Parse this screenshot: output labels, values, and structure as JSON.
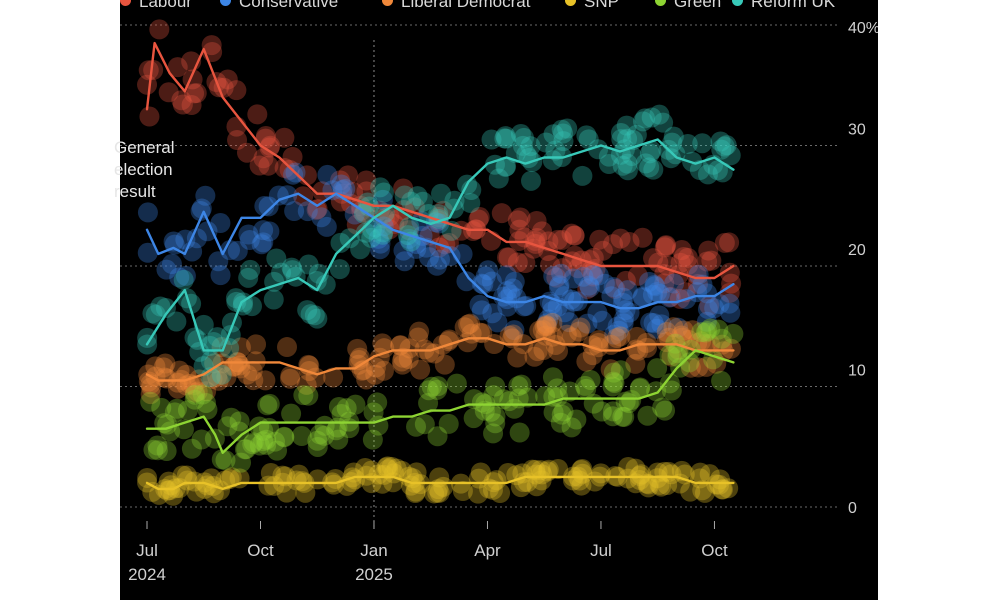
{
  "chart_data": {
    "type": "scatter",
    "subtype": "poll-of-polls (scatter of individual polls with smoothed trend lines)",
    "title": "",
    "xlabel": "",
    "ylabel": "",
    "ylim": [
      0,
      40
    ],
    "y_ticks": [
      "0",
      "10",
      "20",
      "30",
      "40%"
    ],
    "x_ticks": [
      {
        "label": "Jul",
        "year": "2024",
        "date": "2024-07"
      },
      {
        "label": "Oct",
        "year": "",
        "date": "2024-10"
      },
      {
        "label": "Jan",
        "year": "2025",
        "date": "2025-01"
      },
      {
        "label": "Apr",
        "year": "",
        "date": "2025-04"
      },
      {
        "label": "Jul",
        "year": "",
        "date": "2025-07"
      },
      {
        "label": "Oct",
        "year": "",
        "date": "2025-10"
      }
    ],
    "grid": "horizontal dotted",
    "legend_position": "top",
    "annotation": {
      "text": "General\nelection\nresult",
      "date": "2025-01"
    },
    "x_range": [
      "2024-07",
      "2025-12"
    ],
    "series": [
      {
        "name": "Labour",
        "color": "#e8553f",
        "trend": [
          [
            0,
            33
          ],
          [
            0.2,
            38.5
          ],
          [
            0.6,
            36
          ],
          [
            1.0,
            34.5
          ],
          [
            1.5,
            38
          ],
          [
            2.0,
            34
          ],
          [
            2.5,
            32
          ],
          [
            3.0,
            30
          ],
          [
            3.5,
            29
          ],
          [
            4.0,
            27.5
          ],
          [
            4.5,
            26
          ],
          [
            5.0,
            26
          ],
          [
            5.5,
            25.5
          ],
          [
            6.0,
            25
          ],
          [
            6.5,
            25
          ],
          [
            7.0,
            24.5
          ],
          [
            7.5,
            24
          ],
          [
            8.0,
            23.5
          ],
          [
            8.5,
            23
          ],
          [
            9.0,
            23
          ],
          [
            9.5,
            22
          ],
          [
            10.0,
            22
          ],
          [
            10.5,
            21.5
          ],
          [
            11.0,
            21
          ],
          [
            11.5,
            20.5
          ],
          [
            12.0,
            20
          ],
          [
            12.5,
            20
          ],
          [
            13.0,
            20
          ],
          [
            13.5,
            20
          ],
          [
            14.0,
            19.5
          ],
          [
            14.5,
            19
          ],
          [
            15.0,
            19
          ],
          [
            15.5,
            20
          ]
        ]
      },
      {
        "name": "Conservative",
        "color": "#3d86e6",
        "trend": [
          [
            0,
            23
          ],
          [
            0.3,
            21
          ],
          [
            0.7,
            21.5
          ],
          [
            1.0,
            21
          ],
          [
            1.5,
            24.5
          ],
          [
            2.0,
            21
          ],
          [
            2.5,
            24
          ],
          [
            3.0,
            24
          ],
          [
            3.5,
            25.5
          ],
          [
            4.0,
            26
          ],
          [
            4.5,
            25
          ],
          [
            5.0,
            26
          ],
          [
            5.5,
            25
          ],
          [
            6.0,
            24
          ],
          [
            6.5,
            23
          ],
          [
            7.0,
            22.5
          ],
          [
            7.5,
            22
          ],
          [
            8.0,
            21.5
          ],
          [
            8.5,
            19
          ],
          [
            9.0,
            17.5
          ],
          [
            9.5,
            17
          ],
          [
            10.0,
            17
          ],
          [
            10.5,
            17.5
          ],
          [
            11.0,
            17
          ],
          [
            11.5,
            17
          ],
          [
            12.0,
            17
          ],
          [
            12.5,
            16.5
          ],
          [
            13.0,
            16.5
          ],
          [
            13.5,
            17
          ],
          [
            14.0,
            17
          ],
          [
            14.5,
            17.5
          ],
          [
            15.0,
            17.5
          ],
          [
            15.5,
            18.5
          ]
        ]
      },
      {
        "name": "Liberal Democrat",
        "color": "#f0883a",
        "trend": [
          [
            0,
            11
          ],
          [
            0.3,
            10.5
          ],
          [
            1.0,
            10.5
          ],
          [
            1.5,
            11
          ],
          [
            2.0,
            12
          ],
          [
            2.5,
            12
          ],
          [
            3.0,
            12
          ],
          [
            3.5,
            12
          ],
          [
            4.0,
            11.5
          ],
          [
            4.5,
            11
          ],
          [
            5.0,
            11.5
          ],
          [
            5.5,
            11.5
          ],
          [
            6.0,
            12.5
          ],
          [
            6.5,
            13
          ],
          [
            7.0,
            13
          ],
          [
            7.5,
            13
          ],
          [
            8.0,
            13.5
          ],
          [
            8.5,
            14
          ],
          [
            9.0,
            14
          ],
          [
            9.5,
            13.5
          ],
          [
            10.0,
            13.5
          ],
          [
            10.5,
            14
          ],
          [
            11.0,
            13.5
          ],
          [
            11.5,
            13.5
          ],
          [
            12.0,
            13
          ],
          [
            12.5,
            13
          ],
          [
            13.0,
            13.5
          ],
          [
            13.5,
            13.5
          ],
          [
            14.0,
            13.5
          ],
          [
            14.5,
            13
          ],
          [
            15.0,
            13
          ],
          [
            15.5,
            13
          ]
        ]
      },
      {
        "name": "SNP",
        "color": "#e8c228",
        "trend": [
          [
            0,
            2
          ],
          [
            0.3,
            1.5
          ],
          [
            0.7,
            1.5
          ],
          [
            1.0,
            2
          ],
          [
            1.5,
            2
          ],
          [
            2.0,
            1.5
          ],
          [
            2.5,
            2
          ],
          [
            3.0,
            2
          ],
          [
            3.5,
            2
          ],
          [
            4.0,
            2
          ],
          [
            4.5,
            2
          ],
          [
            5.0,
            2
          ],
          [
            5.5,
            2.5
          ],
          [
            6.0,
            2.5
          ],
          [
            6.5,
            2.5
          ],
          [
            7.0,
            2
          ],
          [
            7.5,
            2
          ],
          [
            8.0,
            2
          ],
          [
            8.5,
            2
          ],
          [
            9.0,
            2
          ],
          [
            9.5,
            2
          ],
          [
            10.0,
            2.5
          ],
          [
            10.5,
            2.5
          ],
          [
            11.0,
            2.5
          ],
          [
            11.5,
            2.5
          ],
          [
            12.0,
            2.5
          ],
          [
            12.5,
            2.5
          ],
          [
            13.0,
            2.5
          ],
          [
            13.5,
            2.5
          ],
          [
            14.0,
            2.5
          ],
          [
            14.5,
            2
          ],
          [
            15.0,
            2
          ],
          [
            15.5,
            2
          ]
        ]
      },
      {
        "name": "Green",
        "color": "#8ed433",
        "trend": [
          [
            0,
            6.5
          ],
          [
            0.5,
            6.5
          ],
          [
            1.0,
            7
          ],
          [
            1.5,
            7.5
          ],
          [
            1.8,
            6
          ],
          [
            2.0,
            4.5
          ],
          [
            2.5,
            6
          ],
          [
            3.0,
            7
          ],
          [
            3.5,
            7
          ],
          [
            4.0,
            7
          ],
          [
            4.5,
            7
          ],
          [
            5.0,
            7
          ],
          [
            5.5,
            7
          ],
          [
            6.0,
            7
          ],
          [
            6.5,
            7.5
          ],
          [
            7.0,
            7.5
          ],
          [
            7.5,
            8
          ],
          [
            8.0,
            8
          ],
          [
            8.5,
            8.5
          ],
          [
            9.0,
            8.5
          ],
          [
            9.5,
            8.5
          ],
          [
            10.0,
            8.5
          ],
          [
            10.5,
            8.5
          ],
          [
            11.0,
            9
          ],
          [
            11.5,
            9
          ],
          [
            12.0,
            9
          ],
          [
            12.5,
            9
          ],
          [
            13.0,
            9
          ],
          [
            13.5,
            9.5
          ],
          [
            14.0,
            11.5
          ],
          [
            14.5,
            13
          ],
          [
            15.0,
            12.5
          ],
          [
            15.5,
            12
          ]
        ]
      },
      {
        "name": "Reform UK",
        "color": "#38c9b9",
        "trend": [
          [
            0,
            13.5
          ],
          [
            0.5,
            16
          ],
          [
            1.0,
            18
          ],
          [
            1.5,
            13
          ],
          [
            2.0,
            13
          ],
          [
            2.5,
            17
          ],
          [
            3.0,
            18
          ],
          [
            3.5,
            18.5
          ],
          [
            4.0,
            19
          ],
          [
            4.5,
            18
          ],
          [
            5.0,
            21
          ],
          [
            5.5,
            22.5
          ],
          [
            6.0,
            24
          ],
          [
            6.5,
            25
          ],
          [
            7.0,
            24
          ],
          [
            7.5,
            23.5
          ],
          [
            8.0,
            24
          ],
          [
            8.5,
            27
          ],
          [
            9.0,
            28.5
          ],
          [
            9.5,
            29
          ],
          [
            10.0,
            28.5
          ],
          [
            10.5,
            29
          ],
          [
            11.0,
            29
          ],
          [
            11.5,
            29.5
          ],
          [
            12.0,
            30
          ],
          [
            12.5,
            29.5
          ],
          [
            13.0,
            30
          ],
          [
            13.5,
            30.5
          ],
          [
            14.0,
            29
          ],
          [
            14.5,
            28.5
          ],
          [
            15.0,
            29
          ],
          [
            15.5,
            28
          ]
        ]
      }
    ]
  }
}
